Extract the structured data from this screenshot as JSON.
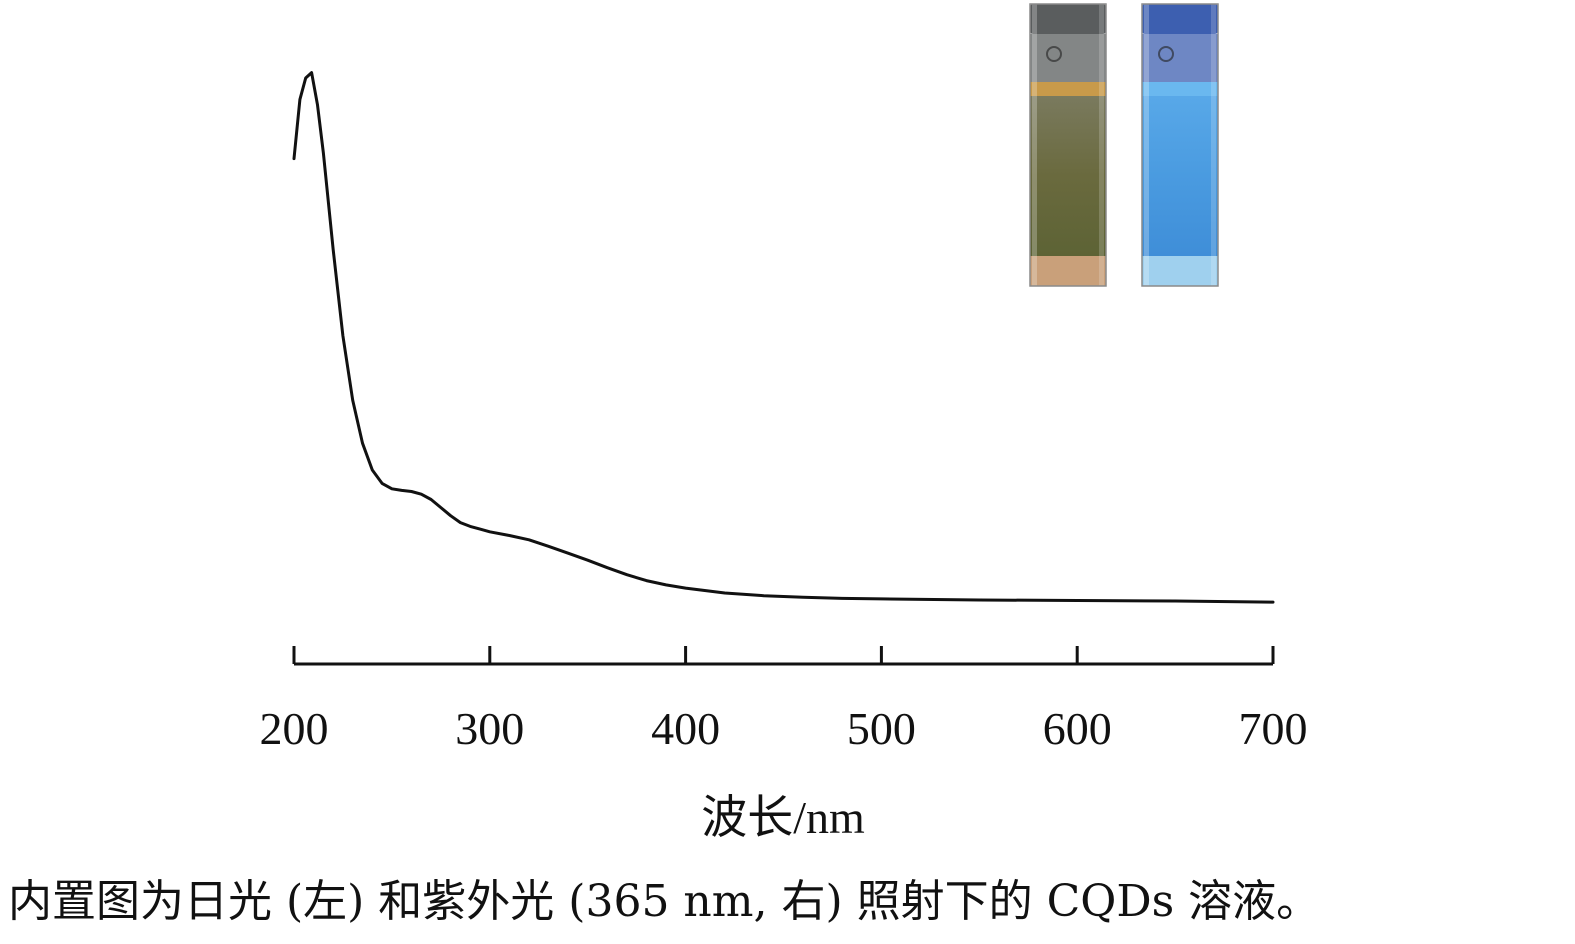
{
  "chart_data": {
    "type": "line",
    "title": "",
    "xlabel": "波长/nm",
    "ylabel": "",
    "xlim": [
      200,
      700
    ],
    "ylim": [
      0,
      1
    ],
    "x_ticks": [
      200,
      300,
      400,
      500,
      600,
      700
    ],
    "x_tick_labels": [
      "200",
      "300",
      "400",
      "500",
      "600",
      "700"
    ],
    "y_axis_shown": false,
    "grid": false,
    "legend": "none",
    "line_color": "#111111",
    "series": [
      {
        "x": [
          200,
          203,
          206,
          209,
          212,
          215,
          220,
          225,
          230,
          235,
          240,
          245,
          250,
          255,
          260,
          265,
          270,
          275,
          280,
          285,
          290,
          295,
          300,
          310,
          320,
          330,
          340,
          350,
          360,
          370,
          380,
          390,
          400,
          420,
          440,
          460,
          480,
          500,
          550,
          600,
          650,
          700
        ],
        "y": [
          0.85,
          0.96,
          1.0,
          1.01,
          0.95,
          0.86,
          0.68,
          0.52,
          0.4,
          0.32,
          0.27,
          0.245,
          0.235,
          0.232,
          0.23,
          0.225,
          0.215,
          0.2,
          0.185,
          0.172,
          0.165,
          0.16,
          0.155,
          0.148,
          0.14,
          0.128,
          0.115,
          0.102,
          0.088,
          0.075,
          0.064,
          0.056,
          0.05,
          0.041,
          0.036,
          0.033,
          0.031,
          0.03,
          0.028,
          0.027,
          0.026,
          0.024
        ]
      }
    ],
    "inset": {
      "cuvettes": [
        {
          "position": "left",
          "liquid_color": "#6d6a45",
          "cap_color": "#5a5d5e",
          "band_color": "#c89a4a",
          "base_color": "#c9a07a"
        },
        {
          "position": "right",
          "liquid_color": "#4d9fe0",
          "cap_color": "#3d5fb0",
          "band_color": "#6ab8ef",
          "base_color": "#9fd0ee"
        }
      ]
    }
  },
  "caption": "内置图为日光 (左) 和紫外光 (365 nm, 右) 照射下的 CQDs 溶液。"
}
